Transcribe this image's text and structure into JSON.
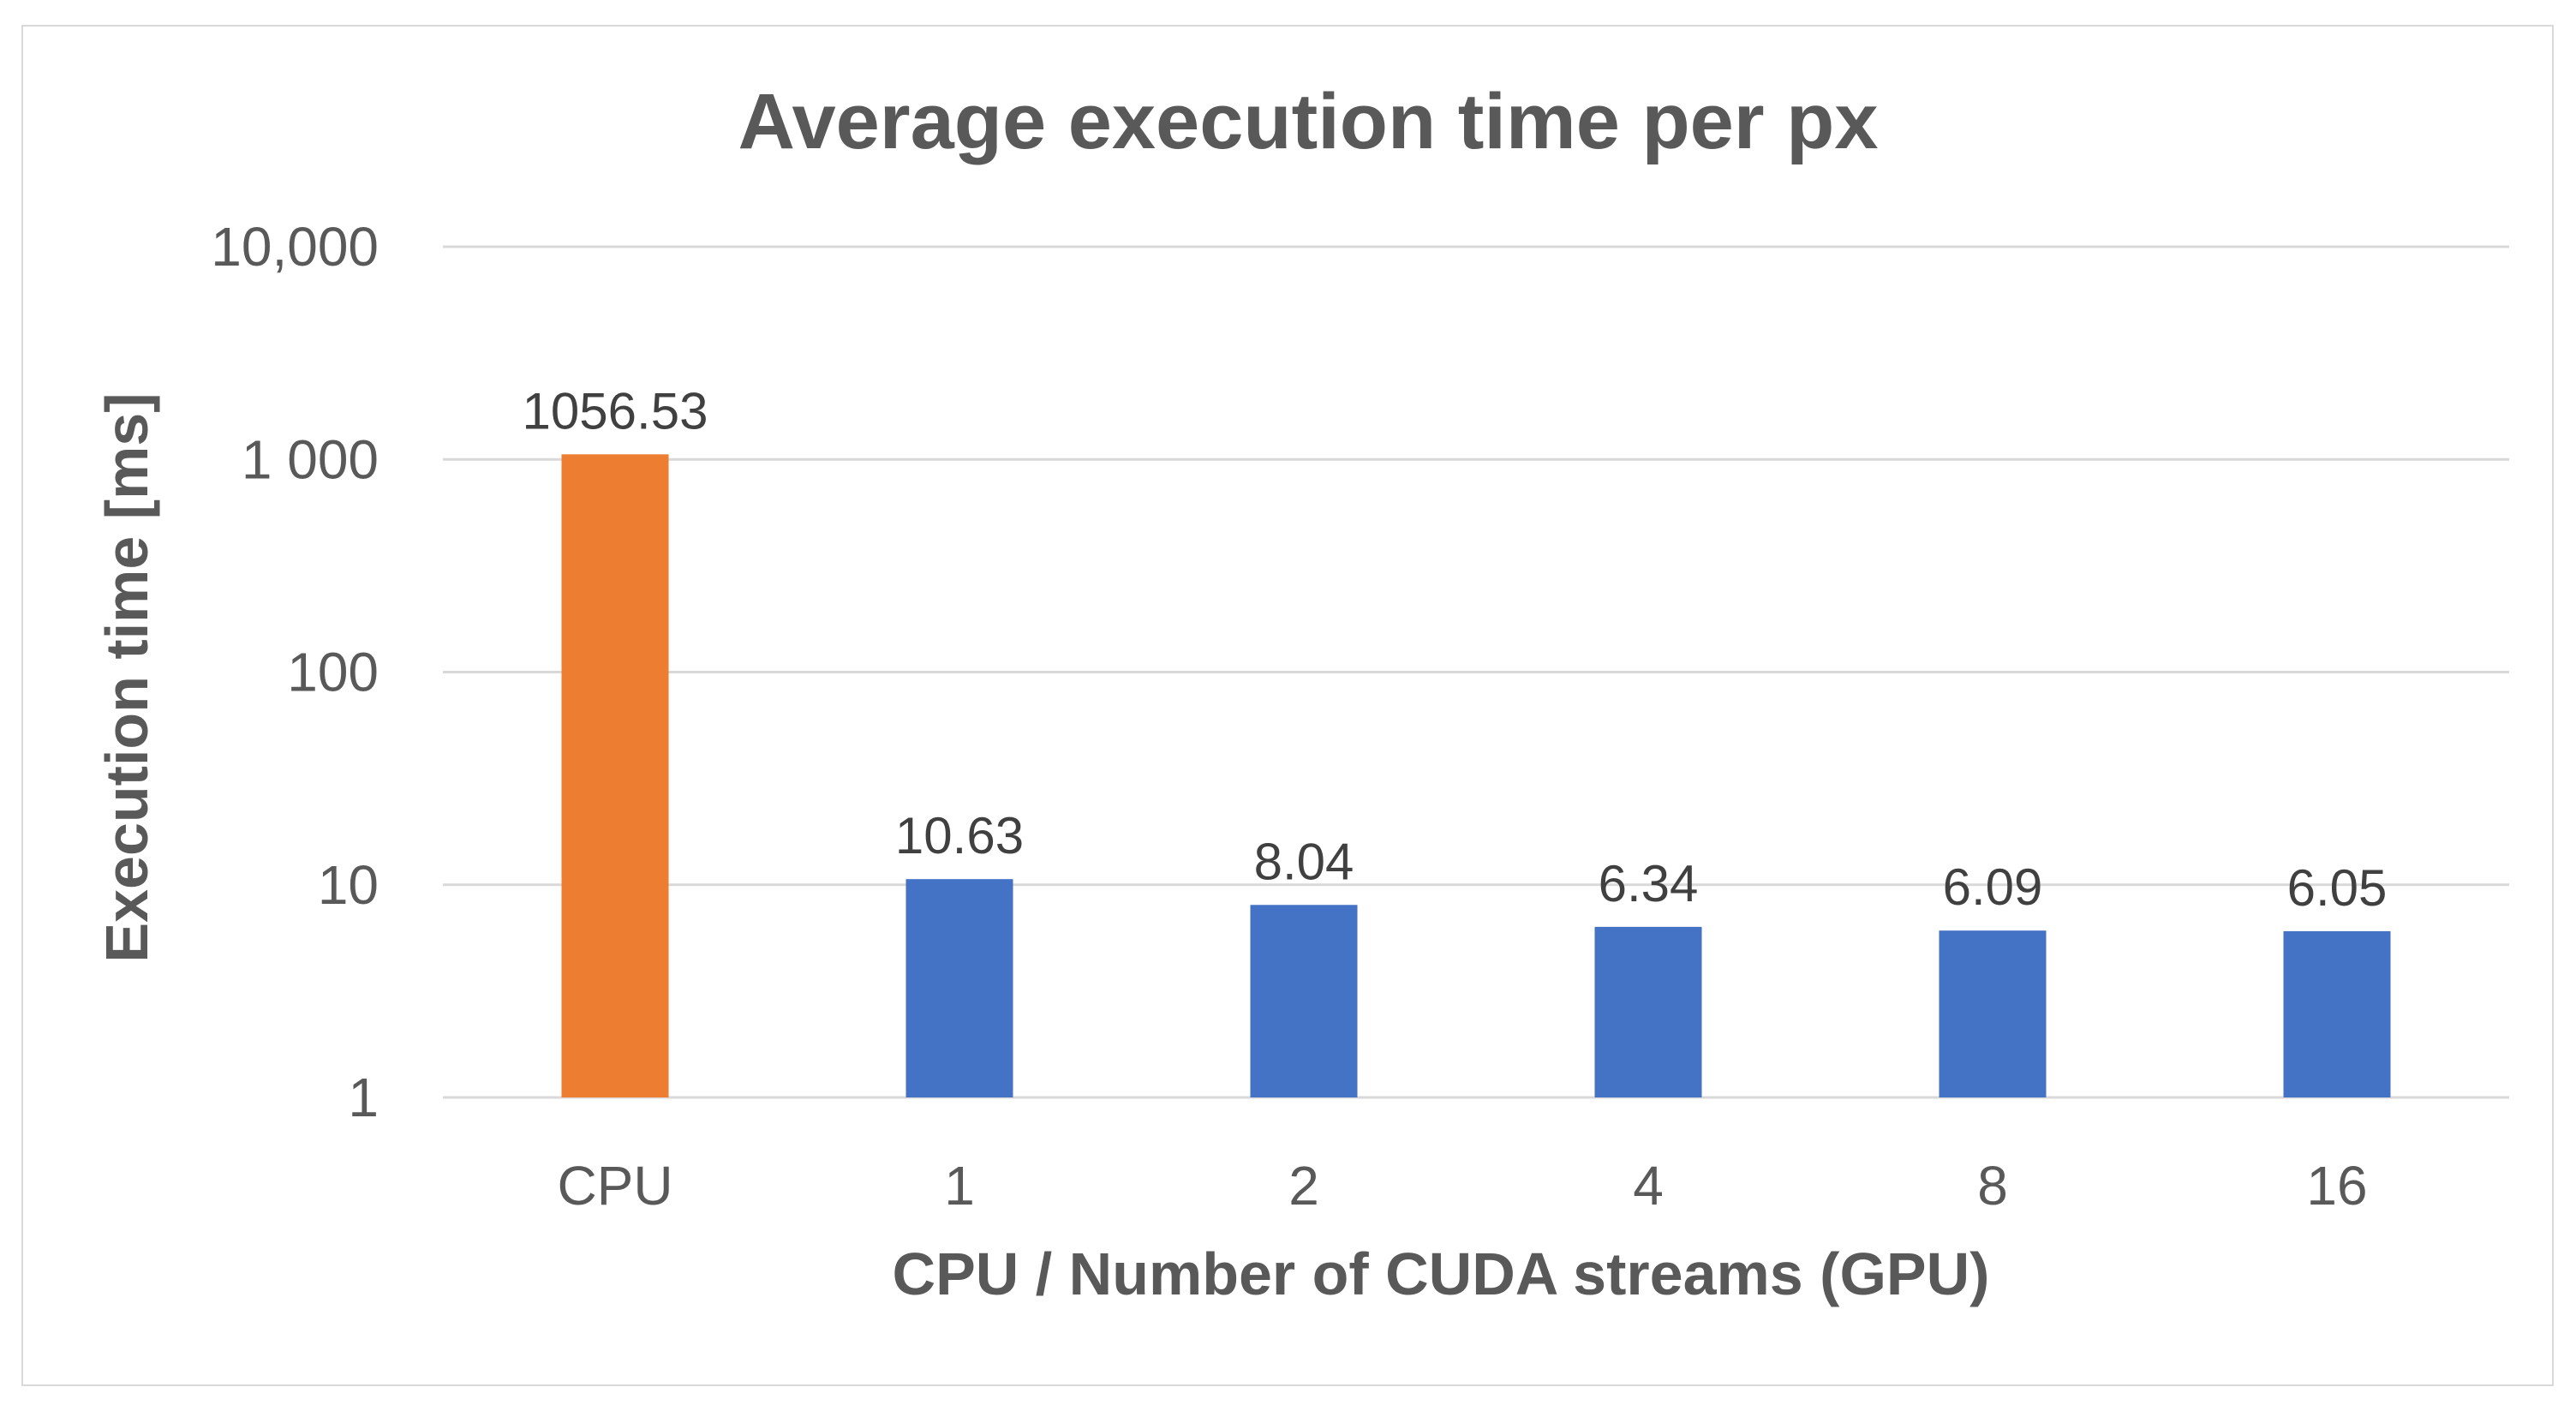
{
  "chart_data": {
    "type": "bar",
    "title": "Average execution time per px",
    "xlabel": "CPU / Number of CUDA streams (GPU)",
    "ylabel": "Execution time [ms]",
    "yscale": "log",
    "ylim": [
      1,
      10000
    ],
    "yticks": [
      1,
      10,
      100,
      1000,
      10000
    ],
    "ytick_labels": [
      "1",
      "10",
      "100",
      "1 000",
      "10,000"
    ],
    "grid": true,
    "legend": "none",
    "categories": [
      "CPU",
      "1",
      "2",
      "4",
      "8",
      "16"
    ],
    "values": [
      1056.53,
      10.63,
      8.04,
      6.34,
      6.09,
      6.05
    ],
    "value_labels": [
      "1056.53",
      "10.63",
      "8.04",
      "6.34",
      "6.09",
      "6.05"
    ],
    "bar_colors": [
      "#ed7d31",
      "#4472c4",
      "#4472c4",
      "#4472c4",
      "#4472c4",
      "#4472c4"
    ]
  }
}
